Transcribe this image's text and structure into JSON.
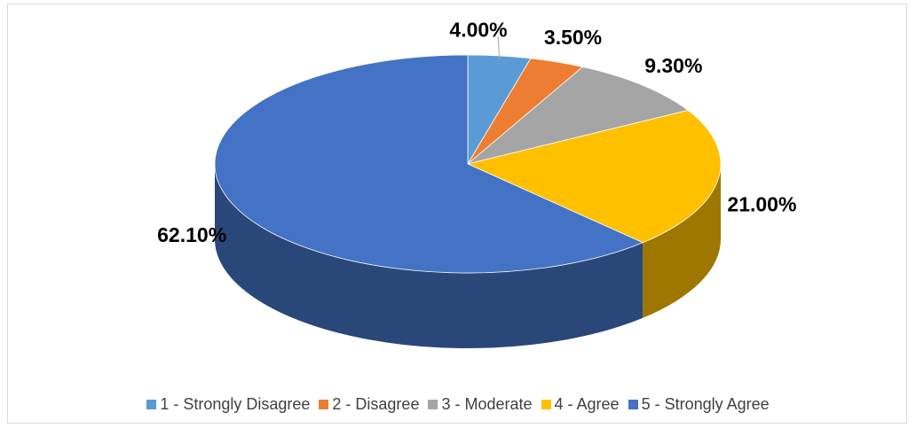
{
  "chart_data": {
    "type": "pie",
    "categories": [
      "1 - Strongly Disagree",
      "2 - Disagree",
      "3 - Moderate",
      "4 - Agree",
      "5 - Strongly Agree"
    ],
    "values": [
      4,
      3.5,
      9.3,
      21,
      62.1
    ],
    "value_labels": [
      "4.00%",
      "3.50%",
      "9.30%",
      "21.00%",
      "62.10%"
    ],
    "colors": [
      "#5b9bd5",
      "#ed7d31",
      "#a5a5a5",
      "#ffc000",
      "#4472c4"
    ],
    "legend": "bottom"
  }
}
